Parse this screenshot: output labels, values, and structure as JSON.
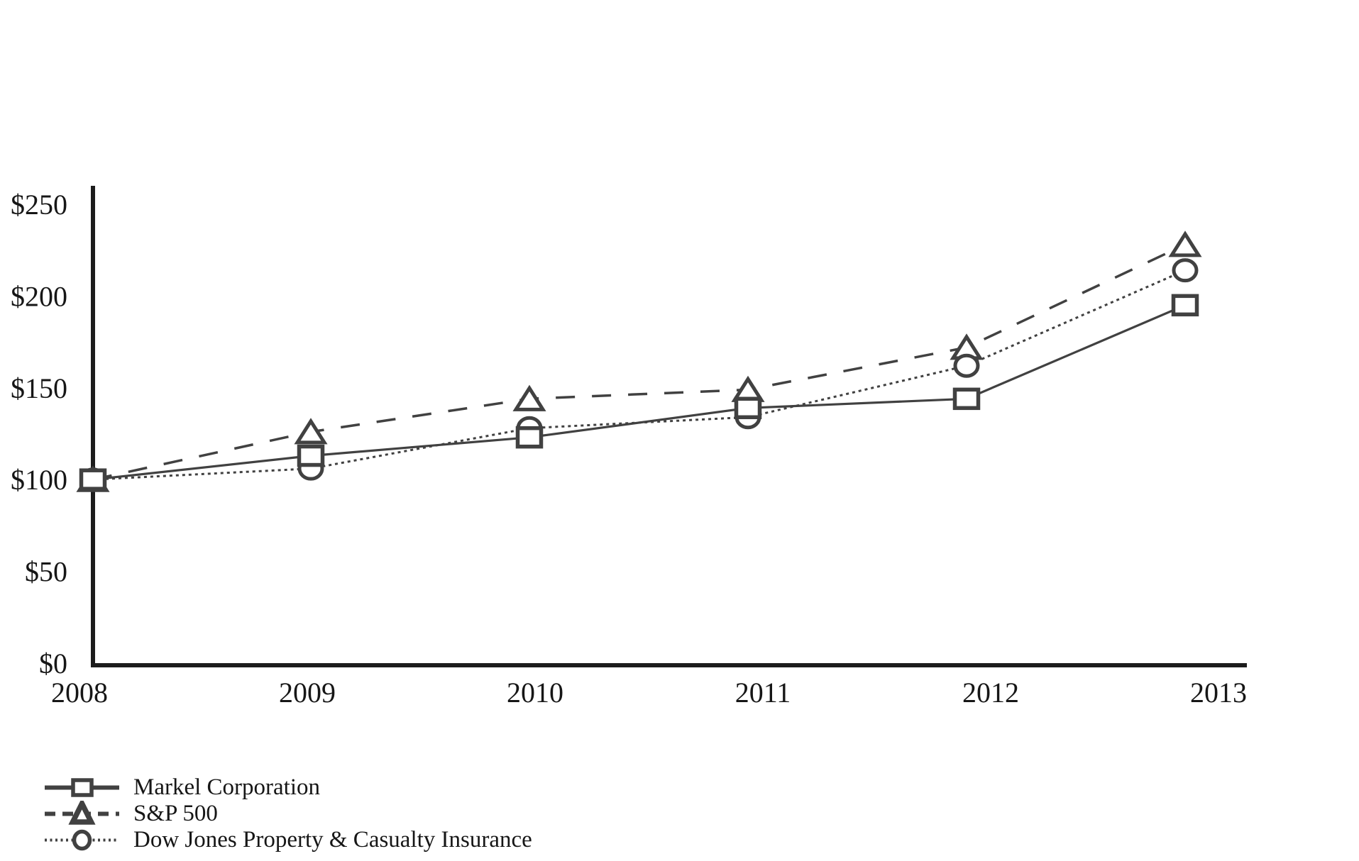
{
  "chart_data": {
    "type": "line",
    "title": "",
    "x_categories": [
      "2008",
      "2009",
      "2010",
      "2011",
      "2012",
      "2013"
    ],
    "series": [
      {
        "name": "Markel Corporation",
        "marker": "square",
        "line_style": "solid",
        "values": [
          100,
          113,
          123,
          139,
          144,
          195
        ]
      },
      {
        "name": "S&P 500",
        "marker": "triangle",
        "line_style": "dashed",
        "values": [
          100,
          126,
          144,
          149,
          172,
          228
        ]
      },
      {
        "name": "Dow Jones Property & Casualty Insurance",
        "marker": "circle",
        "line_style": "dotted",
        "values": [
          100,
          106,
          128,
          134,
          162,
          214
        ]
      }
    ],
    "xlabel": "",
    "ylabel": "",
    "ylim": [
      0,
      250
    ],
    "y_ticks": [
      0,
      50,
      100,
      150,
      200,
      250
    ],
    "y_tick_labels": [
      "$0",
      "$50",
      "$100",
      "$150",
      "$200",
      "$250"
    ],
    "grid": false,
    "legend_position": "bottom-left"
  },
  "colors": {
    "background": "#ffffff",
    "axis": "#1c1c1c",
    "series_line": "#414141",
    "marker_stroke": "#414141",
    "marker_fill": "#ffffff",
    "text": "#161616"
  }
}
